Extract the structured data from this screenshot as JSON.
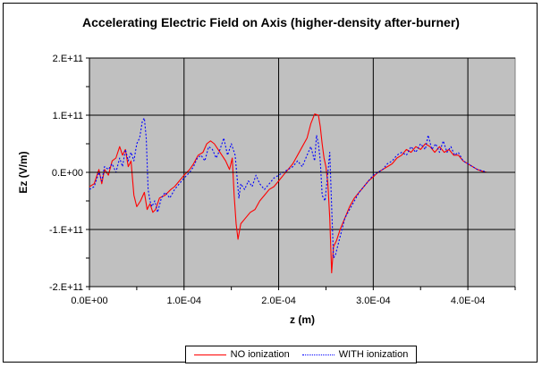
{
  "chart_data": {
    "type": "line",
    "title": "Accelerating Electric Field on Axis (higher-density after-burner)",
    "xlabel": "z (m)",
    "ylabel": "Ez (V/m)",
    "xlim": [
      0,
      0.00045
    ],
    "ylim": [
      -200000000000,
      200000000000
    ],
    "x_ticks": [
      0,
      0.0001,
      0.0002,
      0.0003,
      0.0004
    ],
    "x_tick_labels": [
      "0.0E+00",
      "1.0E-04",
      "2.0E-04",
      "3.0E-04",
      "4.0E-04"
    ],
    "y_ticks": [
      -200000000000,
      -100000000000,
      0,
      100000000000,
      200000000000
    ],
    "y_tick_labels": [
      "-2.E+11",
      "-1.E+11",
      "0.E+00",
      "1.E+11",
      "2.E+11"
    ],
    "grid": true,
    "legend_position": "bottom",
    "plot_background": "#c0c0c0",
    "series": [
      {
        "name": "NO ionization",
        "color": "#ff0000",
        "style": "solid",
        "points": [
          [
            0,
            -25000000000.0
          ],
          [
            5e-06,
            -20000000000.0
          ],
          [
            1e-05,
            5000000000.0
          ],
          [
            1.3e-05,
            -20000000000.0
          ],
          [
            1.6e-05,
            5000000000.0
          ],
          [
            2e-05,
            -5000000000.0
          ],
          [
            2.4e-05,
            20000000000.0
          ],
          [
            2.8e-05,
            25000000000.0
          ],
          [
            3.2e-05,
            45000000000.0
          ],
          [
            3.5e-05,
            30000000000.0
          ],
          [
            3.8e-05,
            40000000000.0
          ],
          [
            4.1e-05,
            10000000000.0
          ],
          [
            4.4e-05,
            20000000000.0
          ],
          [
            4.7e-05,
            -40000000000.0
          ],
          [
            5e-05,
            -60000000000.0
          ],
          [
            5.4e-05,
            -50000000000.0
          ],
          [
            5.8e-05,
            -35000000000.0
          ],
          [
            6.1e-05,
            -65000000000.0
          ],
          [
            6.4e-05,
            -55000000000.0
          ],
          [
            6.7e-05,
            -70000000000.0
          ],
          [
            7e-05,
            -65000000000.0
          ],
          [
            7.4e-05,
            -45000000000.0
          ],
          [
            8e-05,
            -40000000000.0
          ],
          [
            8.6e-05,
            -30000000000.0
          ],
          [
            9e-05,
            -25000000000.0
          ],
          [
            9.5e-05,
            -15000000000.0
          ],
          [
            0.0001,
            -5000000000.0
          ],
          [
            0.000106,
            5000000000.0
          ],
          [
            0.00011,
            15000000000.0
          ],
          [
            0.000115,
            30000000000.0
          ],
          [
            0.00012,
            35000000000.0
          ],
          [
            0.000124,
            50000000000.0
          ],
          [
            0.000128,
            55000000000.0
          ],
          [
            0.000132,
            50000000000.0
          ],
          [
            0.000136,
            40000000000.0
          ],
          [
            0.00014,
            30000000000.0
          ],
          [
            0.000144,
            20000000000.0
          ],
          [
            0.000148,
            5000000000.0
          ],
          [
            0.000151,
            25000000000.0
          ],
          [
            0.000153,
            -40000000000.0
          ],
          [
            0.000155,
            -90000000000.0
          ],
          [
            0.000157,
            -117000000000.0
          ],
          [
            0.00016,
            -90000000000.0
          ],
          [
            0.000165,
            -80000000000.0
          ],
          [
            0.00017,
            -70000000000.0
          ],
          [
            0.000175,
            -65000000000.0
          ],
          [
            0.00018,
            -50000000000.0
          ],
          [
            0.000185,
            -40000000000.0
          ],
          [
            0.00019,
            -30000000000.0
          ],
          [
            0.000195,
            -25000000000.0
          ],
          [
            0.0002,
            -15000000000.0
          ],
          [
            0.000205,
            -5000000000.0
          ],
          [
            0.00021,
            5000000000.0
          ],
          [
            0.000215,
            15000000000.0
          ],
          [
            0.00022,
            30000000000.0
          ],
          [
            0.000225,
            45000000000.0
          ],
          [
            0.00023,
            60000000000.0
          ],
          [
            0.000234,
            85000000000.0
          ],
          [
            0.000238,
            102000000000.0
          ],
          [
            0.000242,
            100000000000.0
          ],
          [
            0.000244,
            80000000000.0
          ],
          [
            0.000246,
            50000000000.0
          ],
          [
            0.000248,
            25000000000.0
          ],
          [
            0.00025,
            10000000000.0
          ],
          [
            0.000252,
            -20000000000.0
          ],
          [
            0.000254,
            -80000000000.0
          ],
          [
            0.000256,
            -176000000000.0
          ],
          [
            0.000258,
            -130000000000.0
          ],
          [
            0.000261,
            -120000000000.0
          ],
          [
            0.000265,
            -100000000000.0
          ],
          [
            0.00027,
            -80000000000.0
          ],
          [
            0.000275,
            -60000000000.0
          ],
          [
            0.00028,
            -45000000000.0
          ],
          [
            0.000285,
            -35000000000.0
          ],
          [
            0.00029,
            -25000000000.0
          ],
          [
            0.000295,
            -15000000000.0
          ],
          [
            0.0003,
            -8000000000.0
          ],
          [
            0.000305,
            0
          ],
          [
            0.00031,
            5000000000.0
          ],
          [
            0.000315,
            10000000000.0
          ],
          [
            0.00032,
            15000000000.0
          ],
          [
            0.000325,
            25000000000.0
          ],
          [
            0.00033,
            30000000000.0
          ],
          [
            0.000335,
            40000000000.0
          ],
          [
            0.00034,
            35000000000.0
          ],
          [
            0.000345,
            45000000000.0
          ],
          [
            0.00035,
            40000000000.0
          ],
          [
            0.000355,
            50000000000.0
          ],
          [
            0.00036,
            45000000000.0
          ],
          [
            0.000365,
            35000000000.0
          ],
          [
            0.00037,
            45000000000.0
          ],
          [
            0.000375,
            35000000000.0
          ],
          [
            0.00038,
            40000000000.0
          ],
          [
            0.000385,
            30000000000.0
          ],
          [
            0.00039,
            30000000000.0
          ],
          [
            0.000395,
            20000000000.0
          ],
          [
            0.0004,
            15000000000.0
          ],
          [
            0.000405,
            10000000000.0
          ],
          [
            0.00041,
            5000000000.0
          ],
          [
            0.000415,
            2000000000.0
          ],
          [
            0.00042,
            0
          ],
          [
            0.00045,
            0
          ]
        ]
      },
      {
        "name": "WITH ionization",
        "color": "#0000ff",
        "style": "dotted",
        "points": [
          [
            0,
            -30000000000.0
          ],
          [
            5e-06,
            -25000000000.0
          ],
          [
            1e-05,
            0
          ],
          [
            1.3e-05,
            -15000000000.0
          ],
          [
            1.6e-05,
            10000000000.0
          ],
          [
            2e-05,
            5000000000.0
          ],
          [
            2.4e-05,
            15000000000.0
          ],
          [
            2.8e-05,
            0
          ],
          [
            3.2e-05,
            25000000000.0
          ],
          [
            3.5e-05,
            10000000000.0
          ],
          [
            3.8e-05,
            40000000000.0
          ],
          [
            4.1e-05,
            20000000000.0
          ],
          [
            4.4e-05,
            35000000000.0
          ],
          [
            4.7e-05,
            20000000000.0
          ],
          [
            5e-05,
            50000000000.0
          ],
          [
            5.3e-05,
            60000000000.0
          ],
          [
            5.6e-05,
            90000000000.0
          ],
          [
            5.8e-05,
            95000000000.0
          ],
          [
            6e-05,
            60000000000.0
          ],
          [
            6.2e-05,
            -30000000000.0
          ],
          [
            6.4e-05,
            -50000000000.0
          ],
          [
            6.6e-05,
            -60000000000.0
          ],
          [
            6.9e-05,
            -50000000000.0
          ],
          [
            7.2e-05,
            -70000000000.0
          ],
          [
            7.6e-05,
            -45000000000.0
          ],
          [
            8e-05,
            -35000000000.0
          ],
          [
            8.5e-05,
            -45000000000.0
          ],
          [
            9e-05,
            -30000000000.0
          ],
          [
            9.5e-05,
            -20000000000.0
          ],
          [
            0.0001,
            -10000000000.0
          ],
          [
            0.000106,
            0
          ],
          [
            0.00011,
            10000000000.0
          ],
          [
            0.000114,
            25000000000.0
          ],
          [
            0.000118,
            30000000000.0
          ],
          [
            0.000122,
            20000000000.0
          ],
          [
            0.000126,
            45000000000.0
          ],
          [
            0.00013,
            40000000000.0
          ],
          [
            0.000134,
            25000000000.0
          ],
          [
            0.000138,
            40000000000.0
          ],
          [
            0.000142,
            60000000000.0
          ],
          [
            0.000146,
            30000000000.0
          ],
          [
            0.00015,
            50000000000.0
          ],
          [
            0.000154,
            30000000000.0
          ],
          [
            0.000158,
            -45000000000.0
          ],
          [
            0.00016,
            -20000000000.0
          ],
          [
            0.000164,
            -30000000000.0
          ],
          [
            0.000168,
            -15000000000.0
          ],
          [
            0.000172,
            -25000000000.0
          ],
          [
            0.000176,
            -5000000000.0
          ],
          [
            0.00018,
            -20000000000.0
          ],
          [
            0.000185,
            -30000000000.0
          ],
          [
            0.00019,
            -20000000000.0
          ],
          [
            0.000195,
            -10000000000.0
          ],
          [
            0.0002,
            -5000000000.0
          ],
          [
            0.000205,
            0
          ],
          [
            0.00021,
            5000000000.0
          ],
          [
            0.000215,
            10000000000.0
          ],
          [
            0.00022,
            20000000000.0
          ],
          [
            0.000225,
            10000000000.0
          ],
          [
            0.00023,
            30000000000.0
          ],
          [
            0.000234,
            45000000000.0
          ],
          [
            0.000238,
            20000000000.0
          ],
          [
            0.00024,
            65000000000.0
          ],
          [
            0.000242,
            50000000000.0
          ],
          [
            0.000244,
            20000000000.0
          ],
          [
            0.000246,
            -40000000000.0
          ],
          [
            0.000249,
            -50000000000.0
          ],
          [
            0.000252,
            0
          ],
          [
            0.000254,
            35000000000.0
          ],
          [
            0.000256,
            -60000000000.0
          ],
          [
            0.000258,
            -150000000000.0
          ],
          [
            0.00026,
            -145000000000.0
          ],
          [
            0.000263,
            -125000000000.0
          ],
          [
            0.000267,
            -100000000000.0
          ],
          [
            0.00027,
            -80000000000.0
          ],
          [
            0.000275,
            -65000000000.0
          ],
          [
            0.00028,
            -50000000000.0
          ],
          [
            0.000285,
            -35000000000.0
          ],
          [
            0.00029,
            -25000000000.0
          ],
          [
            0.000295,
            -15000000000.0
          ],
          [
            0.0003,
            -5000000000.0
          ],
          [
            0.000305,
            0
          ],
          [
            0.00031,
            5000000000.0
          ],
          [
            0.000315,
            15000000000.0
          ],
          [
            0.00032,
            20000000000.0
          ],
          [
            0.000325,
            30000000000.0
          ],
          [
            0.00033,
            35000000000.0
          ],
          [
            0.000335,
            30000000000.0
          ],
          [
            0.00034,
            45000000000.0
          ],
          [
            0.000345,
            35000000000.0
          ],
          [
            0.00035,
            50000000000.0
          ],
          [
            0.000355,
            40000000000.0
          ],
          [
            0.000358,
            65000000000.0
          ],
          [
            0.000362,
            40000000000.0
          ],
          [
            0.000366,
            50000000000.0
          ],
          [
            0.00037,
            35000000000.0
          ],
          [
            0.000374,
            55000000000.0
          ],
          [
            0.000378,
            35000000000.0
          ],
          [
            0.000382,
            45000000000.0
          ],
          [
            0.000386,
            30000000000.0
          ],
          [
            0.00039,
            35000000000.0
          ],
          [
            0.000395,
            20000000000.0
          ],
          [
            0.0004,
            15000000000.0
          ],
          [
            0.000405,
            10000000000.0
          ],
          [
            0.00041,
            5000000000.0
          ],
          [
            0.000415,
            3000000000.0
          ],
          [
            0.00042,
            0
          ],
          [
            0.00045,
            0
          ]
        ]
      }
    ]
  }
}
